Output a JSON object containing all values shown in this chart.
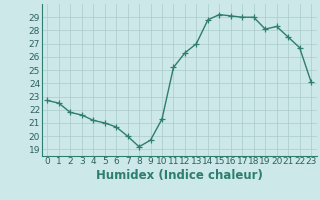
{
  "x": [
    0,
    1,
    2,
    3,
    4,
    5,
    6,
    7,
    8,
    9,
    10,
    11,
    12,
    13,
    14,
    15,
    16,
    17,
    18,
    19,
    20,
    21,
    22,
    23
  ],
  "y": [
    22.7,
    22.5,
    21.8,
    21.6,
    21.2,
    21.0,
    20.7,
    20.0,
    19.2,
    19.7,
    21.3,
    25.2,
    26.3,
    27.0,
    28.8,
    29.2,
    29.1,
    29.0,
    29.0,
    28.1,
    28.3,
    27.5,
    26.7,
    24.1
  ],
  "line_color": "#2e7d6e",
  "marker": "+",
  "marker_size": 4,
  "bg_color": "#cce8e8",
  "grid_color": "#aacccc",
  "xlabel": "Humidex (Indice chaleur)",
  "xlim": [
    -0.5,
    23.5
  ],
  "ylim": [
    18.5,
    30.0
  ],
  "yticks": [
    19,
    20,
    21,
    22,
    23,
    24,
    25,
    26,
    27,
    28,
    29
  ],
  "xticks": [
    0,
    1,
    2,
    3,
    4,
    5,
    6,
    7,
    8,
    9,
    10,
    11,
    12,
    13,
    14,
    15,
    16,
    17,
    18,
    19,
    20,
    21,
    22,
    23
  ],
  "tick_fontsize": 6.5,
  "xlabel_fontsize": 8.5,
  "line_width": 1.0
}
